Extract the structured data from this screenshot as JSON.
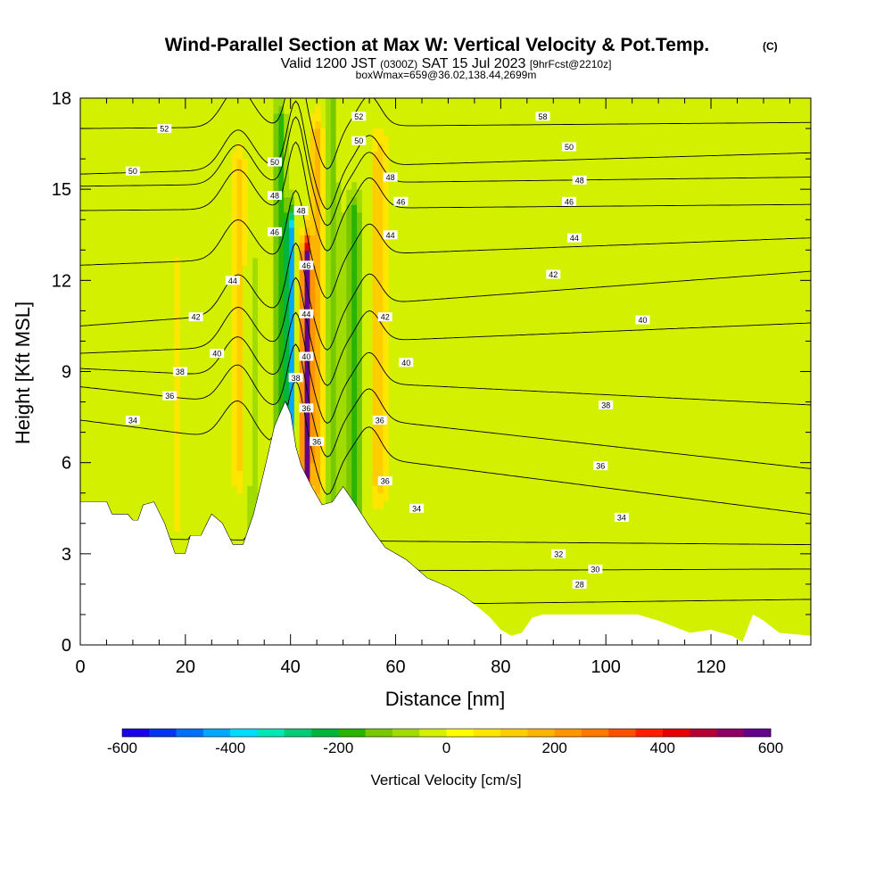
{
  "chart_data": {
    "type": "heatmap",
    "title": "Wind-Parallel Section at Max W: Vertical Velocity & Pot.Temp.",
    "title_mark": "(C)",
    "subtitle": {
      "valid": "Valid 1200 JST",
      "utc": "(0300Z)",
      "date": "SAT 15 Jul 2023",
      "fcst": "[9hrFcst@2210z]"
    },
    "box_info": "boxWmax=659@36.02,138.44,2699m",
    "xlabel": "Distance [nm]",
    "ylabel": "Height [Kft MSL]",
    "xlim": [
      0,
      139
    ],
    "ylim": [
      0,
      18
    ],
    "x_ticks": [
      "0",
      "20",
      "40",
      "60",
      "80",
      "100",
      "120"
    ],
    "y_ticks": [
      "0",
      "3",
      "6",
      "9",
      "12",
      "15",
      "18"
    ],
    "grid": false,
    "colorbar": {
      "title": "Vertical Velocity [cm/s]",
      "range": [
        -600,
        600
      ],
      "tick_labels": [
        "-600",
        "-400",
        "-200",
        "0",
        "200",
        "400",
        "600"
      ],
      "colors": [
        "#1a00e6",
        "#0036f0",
        "#0070f8",
        "#00a8ff",
        "#00dcff",
        "#00e6b4",
        "#00cc78",
        "#00b43c",
        "#28b400",
        "#78c800",
        "#a0dc00",
        "#d2f000",
        "#ffff00",
        "#ffe600",
        "#ffcd00",
        "#ffb400",
        "#ff9600",
        "#ff7800",
        "#ff5000",
        "#ff1e00",
        "#e60000",
        "#b40032",
        "#8c0064",
        "#64008c"
      ]
    },
    "terrain": [
      [
        0,
        4.7
      ],
      [
        5,
        4.7
      ],
      [
        6,
        4.3
      ],
      [
        9,
        4.3
      ],
      [
        10,
        4.1
      ],
      [
        11,
        4.1
      ],
      [
        12,
        4.6
      ],
      [
        14,
        4.7
      ],
      [
        16,
        4.0
      ],
      [
        18,
        3.0
      ],
      [
        20,
        3.0
      ],
      [
        21,
        3.6
      ],
      [
        23,
        3.6
      ],
      [
        25,
        4.3
      ],
      [
        27,
        4.0
      ],
      [
        29,
        3.3
      ],
      [
        31,
        3.3
      ],
      [
        33,
        4.3
      ],
      [
        35,
        5.7
      ],
      [
        37,
        7.2
      ],
      [
        39,
        8.0
      ],
      [
        40,
        7.6
      ],
      [
        41,
        6.5
      ],
      [
        42,
        5.9
      ],
      [
        44,
        5.2
      ],
      [
        46,
        4.6
      ],
      [
        48,
        4.7
      ],
      [
        50,
        5.2
      ],
      [
        52,
        4.7
      ],
      [
        55,
        3.9
      ],
      [
        58,
        3.2
      ],
      [
        62,
        2.8
      ],
      [
        66,
        2.2
      ],
      [
        70,
        1.9
      ],
      [
        73,
        1.6
      ],
      [
        76,
        1.2
      ],
      [
        78,
        0.9
      ],
      [
        80,
        0.5
      ],
      [
        82,
        0.3
      ],
      [
        84,
        0.4
      ],
      [
        86,
        0.9
      ],
      [
        88,
        1.0
      ],
      [
        106,
        1.0
      ],
      [
        110,
        0.8
      ],
      [
        116,
        0.4
      ],
      [
        120,
        0.5
      ],
      [
        124,
        0.3
      ],
      [
        126,
        0.1
      ],
      [
        128,
        1.0
      ],
      [
        130,
        0.8
      ],
      [
        133,
        0.4
      ],
      [
        139,
        0.3
      ]
    ],
    "theta_contours": [
      {
        "value": 28,
        "y_left": 1.2,
        "y_right": 1.5
      },
      {
        "value": 30,
        "y_left": 2.4,
        "y_right": 2.5
      },
      {
        "value": 32,
        "y_left": 3.5,
        "y_right": 3.3
      },
      {
        "value": 34,
        "y_left": 7.4,
        "y_right": 4.3
      },
      {
        "value": 36,
        "y_left": 8.5,
        "y_right": 5.8
      },
      {
        "value": 38,
        "y_left": 9.1,
        "y_right": 7.9
      },
      {
        "value": 40,
        "y_left": 9.6,
        "y_right": 10.6
      },
      {
        "value": 42,
        "y_left": 10.5,
        "y_right": 12.3
      },
      {
        "value": 44,
        "y_left": 12.5,
        "y_right": 13.4
      },
      {
        "value": 46,
        "y_left": 14.3,
        "y_right": 14.5
      },
      {
        "value": 48,
        "y_left": 15.1,
        "y_right": 15.4
      },
      {
        "value": 50,
        "y_left": 15.5,
        "y_right": 16.2
      },
      {
        "value": 52,
        "y_left": 17.0,
        "y_right": 17.2
      }
    ],
    "contour_labels": [
      {
        "text": "52",
        "x": 16,
        "y": 17.0
      },
      {
        "text": "50",
        "x": 10,
        "y": 15.6
      },
      {
        "text": "42",
        "x": 22,
        "y": 10.8
      },
      {
        "text": "44",
        "x": 29,
        "y": 12.0
      },
      {
        "text": "40",
        "x": 26,
        "y": 9.6
      },
      {
        "text": "38",
        "x": 19,
        "y": 9.0
      },
      {
        "text": "36",
        "x": 17,
        "y": 8.2
      },
      {
        "text": "34",
        "x": 10,
        "y": 7.4
      },
      {
        "text": "50",
        "x": 37,
        "y": 15.9
      },
      {
        "text": "48",
        "x": 37,
        "y": 14.8
      },
      {
        "text": "46",
        "x": 37,
        "y": 13.6
      },
      {
        "text": "48",
        "x": 42,
        "y": 14.3
      },
      {
        "text": "46",
        "x": 43,
        "y": 12.5
      },
      {
        "text": "44",
        "x": 43,
        "y": 10.9
      },
      {
        "text": "40",
        "x": 43,
        "y": 9.5
      },
      {
        "text": "38",
        "x": 41,
        "y": 8.8
      },
      {
        "text": "36",
        "x": 43,
        "y": 7.8
      },
      {
        "text": "36",
        "x": 45,
        "y": 6.7
      },
      {
        "text": "52",
        "x": 53,
        "y": 17.4
      },
      {
        "text": "50",
        "x": 53,
        "y": 16.6
      },
      {
        "text": "48",
        "x": 59,
        "y": 15.4
      },
      {
        "text": "46",
        "x": 61,
        "y": 14.6
      },
      {
        "text": "44",
        "x": 59,
        "y": 13.5
      },
      {
        "text": "42",
        "x": 58,
        "y": 10.8
      },
      {
        "text": "40",
        "x": 62,
        "y": 9.3
      },
      {
        "text": "36",
        "x": 57,
        "y": 7.4
      },
      {
        "text": "36",
        "x": 58,
        "y": 5.4
      },
      {
        "text": "34",
        "x": 64,
        "y": 4.5
      },
      {
        "text": "58",
        "x": 88,
        "y": 17.4
      },
      {
        "text": "50",
        "x": 93,
        "y": 16.4
      },
      {
        "text": "48",
        "x": 95,
        "y": 15.3
      },
      {
        "text": "46",
        "x": 93,
        "y": 14.6
      },
      {
        "text": "44",
        "x": 94,
        "y": 13.4
      },
      {
        "text": "42",
        "x": 90,
        "y": 12.2
      },
      {
        "text": "40",
        "x": 107,
        "y": 10.7
      },
      {
        "text": "38",
        "x": 100,
        "y": 7.9
      },
      {
        "text": "36",
        "x": 99,
        "y": 5.9
      },
      {
        "text": "34",
        "x": 103,
        "y": 4.2
      },
      {
        "text": "32",
        "x": 91,
        "y": 3.0
      },
      {
        "text": "30",
        "x": 98,
        "y": 2.5
      },
      {
        "text": "28",
        "x": 95,
        "y": 2.0
      }
    ],
    "w_features": [
      {
        "x": 30,
        "y0": 6.0,
        "y1": 15.5,
        "hw": 1.6,
        "w": 120
      },
      {
        "x": 33,
        "y0": 3.5,
        "y1": 12.0,
        "hw": 1.4,
        "w": -80
      },
      {
        "x": 14,
        "y0": 4.5,
        "y1": 13.0,
        "hw": 1.2,
        "w": -50
      },
      {
        "x": 18,
        "y0": 4.0,
        "y1": 12.5,
        "hw": 1.2,
        "w": 60
      },
      {
        "x": 40,
        "y0": 7.5,
        "y1": 13.5,
        "hw": 0.8,
        "w": -430
      },
      {
        "x": 38,
        "y0": 7.5,
        "y1": 17.0,
        "hw": 1.2,
        "w": -200
      },
      {
        "x": 43,
        "y0": 6.0,
        "y1": 12.5,
        "hw": 0.8,
        "w": 660
      },
      {
        "x": 45,
        "y0": 5.5,
        "y1": 16.5,
        "hw": 1.2,
        "w": 200
      },
      {
        "x": 48,
        "y0": 5.0,
        "y1": 17.5,
        "hw": 1.2,
        "w": -120
      },
      {
        "x": 52,
        "y0": 4.0,
        "y1": 14.0,
        "hw": 1.6,
        "w": -180
      },
      {
        "x": 57,
        "y0": 5.5,
        "y1": 16.0,
        "hw": 1.8,
        "w": 140
      },
      {
        "x": 62,
        "y0": 3.5,
        "y1": 16.0,
        "hw": 2.0,
        "w": -40
      },
      {
        "x": 102,
        "y0": 0.3,
        "y1": 2.0,
        "hw": 8.0,
        "w": -30
      },
      {
        "x": 120,
        "y0": 0.3,
        "y1": 6.0,
        "hw": 3.0,
        "w": -40
      }
    ]
  }
}
